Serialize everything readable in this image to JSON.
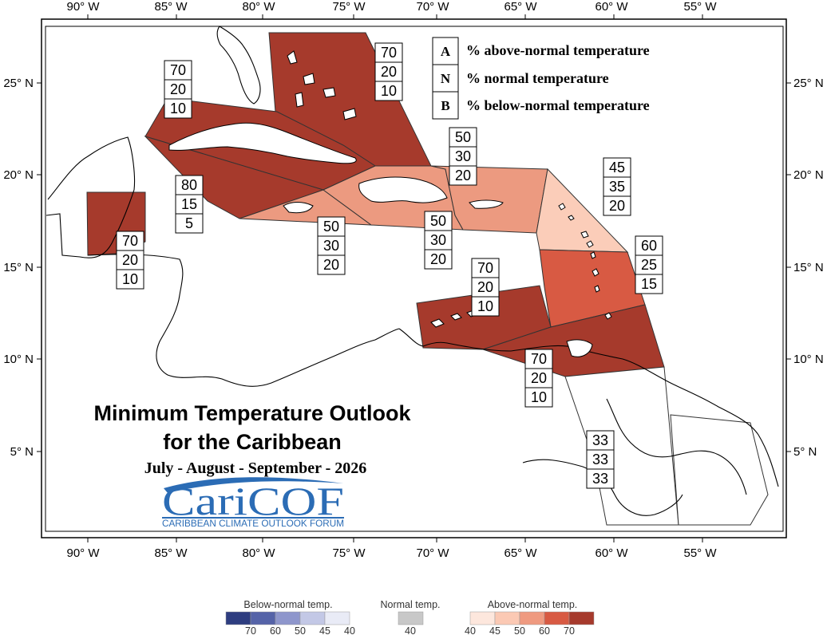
{
  "map": {
    "title_line1": "Minimum Temperature Outlook",
    "title_line2": "for the Caribbean",
    "period": "July - August - September - 2026",
    "lon_labels": [
      "90° W",
      "85° W",
      "80° W",
      "75° W",
      "70° W",
      "65° W",
      "60° W",
      "55° W"
    ],
    "lat_labels": [
      "25° N",
      "20° N",
      "15° N",
      "10° N",
      "5° N"
    ]
  },
  "legend": {
    "rows": [
      {
        "key": "A",
        "desc": "% above-normal temperature"
      },
      {
        "key": "N",
        "desc": "% normal temperature"
      },
      {
        "key": "B",
        "desc": "% below-normal temperature"
      }
    ]
  },
  "logo": {
    "main": "CariCOF",
    "sub": "CARIBBEAN CLIMATE OUTLOOK FORUM"
  },
  "regions": [
    {
      "id": "bahamas",
      "above": 70,
      "normal": 20,
      "below": 10,
      "color": "#a63a2c"
    },
    {
      "id": "cuba",
      "above": 70,
      "normal": 20,
      "below": 10,
      "color": "#a63a2c"
    },
    {
      "id": "cayman",
      "above": 80,
      "normal": 15,
      "below": 5,
      "color": "#a63a2c"
    },
    {
      "id": "belize",
      "above": 70,
      "normal": 20,
      "below": 10,
      "color": "#a63a2c"
    },
    {
      "id": "jamaica",
      "above": 50,
      "normal": 30,
      "below": 20,
      "color": "#ec9a80"
    },
    {
      "id": "hispaniola",
      "above": 50,
      "normal": 30,
      "below": 20,
      "color": "#ec9a80"
    },
    {
      "id": "puerto-rico",
      "above": 50,
      "normal": 30,
      "below": 20,
      "color": "#ec9a80"
    },
    {
      "id": "leeward-islands",
      "above": 45,
      "normal": 35,
      "below": 20,
      "color": "#fbcdb9"
    },
    {
      "id": "windward-islands",
      "above": 60,
      "normal": 25,
      "below": 15,
      "color": "#d85a43"
    },
    {
      "id": "abc-islands",
      "above": 70,
      "normal": 20,
      "below": 10,
      "color": "#a63a2c"
    },
    {
      "id": "trinidad",
      "above": 70,
      "normal": 20,
      "below": 10,
      "color": "#a63a2c"
    },
    {
      "id": "guianas",
      "above": 33,
      "normal": 33,
      "below": 33,
      "color": "#ffffff"
    }
  ],
  "colorbar": {
    "below_title": "Below-normal temp.",
    "normal_title": "Normal temp.",
    "above_title": "Above-normal temp.",
    "below_colors": [
      "#2e3d80",
      "#5563a8",
      "#8e96cc",
      "#c3c8e6",
      "#e9ebf6"
    ],
    "below_ticks": [
      "70",
      "60",
      "50",
      "45",
      "40"
    ],
    "normal_color": "#c8c8c8",
    "normal_tick": "40",
    "above_colors": [
      "#fde7dd",
      "#fbc9b4",
      "#ef9a80",
      "#d85a43",
      "#a63a2c"
    ],
    "above_ticks": [
      "40",
      "45",
      "50",
      "60",
      "70"
    ]
  }
}
